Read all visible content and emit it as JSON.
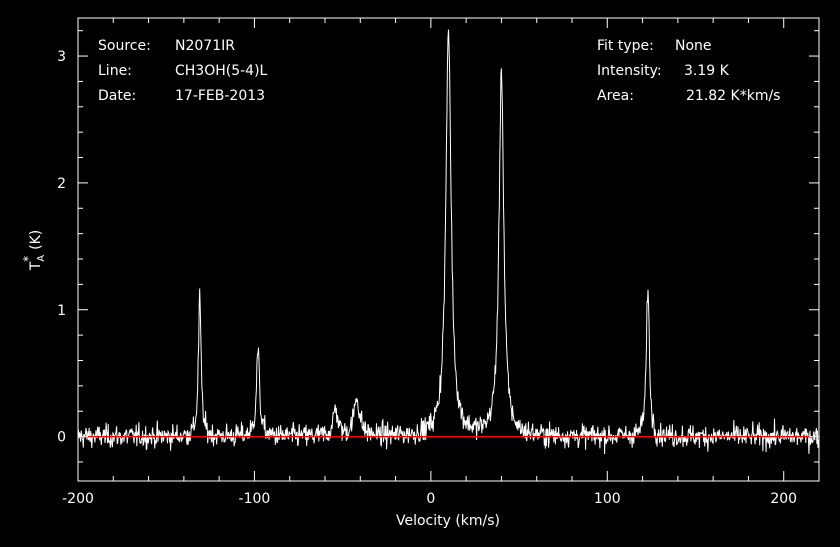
{
  "chart_data": {
    "type": "line",
    "info_left": {
      "source_label": "Source:",
      "source_value": "N2071IR",
      "line_label": "Line:",
      "line_value": "CH3OH(5-4)L",
      "date_label": "Date:",
      "date_value": "17-FEB-2013"
    },
    "info_right": {
      "fit_label": "Fit type:",
      "fit_value": "None",
      "intensity_label": "Intensity:",
      "intensity_value": "3.19 K",
      "area_label": "Area:",
      "area_value": "21.82 K*km/s"
    },
    "xlabel": "Velocity (km/s)",
    "ylabel_main": "T",
    "ylabel_sub": "A",
    "ylabel_sup": "*",
    "ylabel_unit": "(K)",
    "xlim": [
      -200,
      220
    ],
    "ylim": [
      -0.35,
      3.3
    ],
    "xticks": [
      -200,
      -100,
      0,
      100,
      200
    ],
    "xtick_labels": [
      "-200",
      "-100",
      "0",
      "100",
      "200"
    ],
    "yticks": [
      0,
      1,
      2,
      3
    ],
    "ytick_labels": [
      "0",
      "1",
      "2",
      "3"
    ],
    "baseline": 0,
    "baseline_color": "#ff0000",
    "line_color": "#ffffff",
    "background": "#000000",
    "grid": false,
    "noise_rms": 0.045,
    "peaks": [
      {
        "x": -131,
        "y": 1.1,
        "width": 0.9
      },
      {
        "x": -98,
        "y": 0.68,
        "width": 1.1
      },
      {
        "x": -54,
        "y": 0.22,
        "width": 1.5
      },
      {
        "x": -42,
        "y": 0.3,
        "width": 2.0
      },
      {
        "x": 10,
        "y": 3.19,
        "width": 1.8
      },
      {
        "x": 40,
        "y": 2.9,
        "width": 1.6
      },
      {
        "x": 123,
        "y": 1.2,
        "width": 1.0
      }
    ]
  }
}
